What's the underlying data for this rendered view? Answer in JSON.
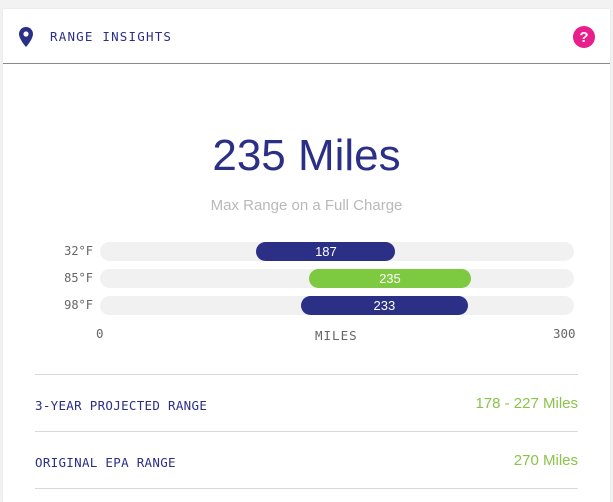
{
  "header": {
    "title": "RANGE INSIGHTS"
  },
  "summary": {
    "headline": "235 Miles",
    "subtitle": "Max Range on a Full Charge"
  },
  "chart_data": {
    "type": "bar",
    "orientation": "horizontal",
    "categories": [
      "32°F",
      "85°F",
      "98°F"
    ],
    "bars": [
      {
        "label": "32°F",
        "value": 187,
        "start": 99,
        "color": "#2b2f86"
      },
      {
        "label": "85°F",
        "value": 235,
        "start": 132,
        "color": "#7dc940"
      },
      {
        "label": "98°F",
        "value": 233,
        "start": 127,
        "color": "#2b2f86"
      }
    ],
    "xlim": [
      0,
      300
    ],
    "xmin_label": "0",
    "xmax_label": "300",
    "xlabel": "MILES"
  },
  "stats": [
    {
      "label": "3-YEAR PROJECTED RANGE",
      "value": "178 - 227 Miles"
    },
    {
      "label": "ORIGINAL EPA RANGE",
      "value": "270 Miles"
    }
  ],
  "colors": {
    "primary": "#2b2f86",
    "accent": "#7dc940",
    "help": "#e91e8c"
  },
  "icons": {
    "header": "map-pin-icon",
    "help": "help-icon"
  }
}
